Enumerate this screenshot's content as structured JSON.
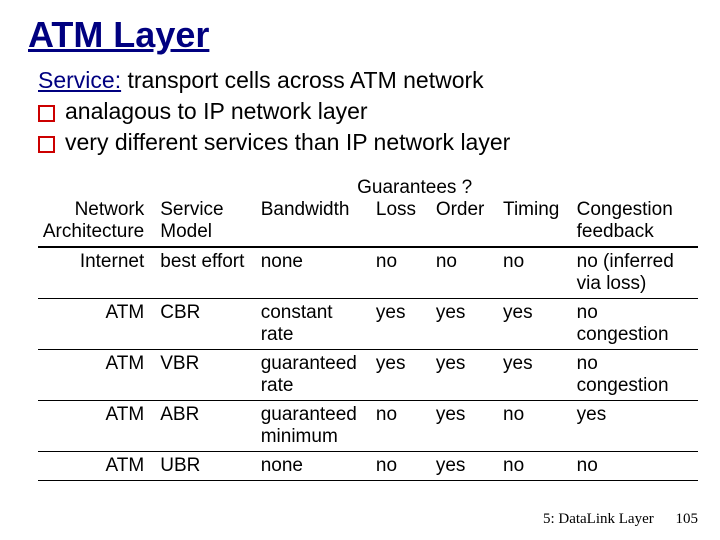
{
  "title": "ATM Layer",
  "service_label": "Service:",
  "service_text": " transport cells across ATM network",
  "bullets": [
    "analagous to IP network layer",
    "very different services than IP network layer"
  ],
  "table": {
    "guarantees_label": "Guarantees ?",
    "headers": {
      "arch": "Network\nArchitecture",
      "model": "Service\nModel",
      "bw": "Bandwidth",
      "loss": "Loss",
      "order": "Order",
      "timing": "Timing",
      "cong": "Congestion\nfeedback"
    },
    "rows": [
      {
        "arch": "Internet",
        "model": "best effort",
        "bw": "none",
        "loss": "no",
        "order": "no",
        "timing": "no",
        "cong": "no (inferred\nvia loss)"
      },
      {
        "arch": "ATM",
        "model": "CBR",
        "bw": "constant\nrate",
        "loss": "yes",
        "order": "yes",
        "timing": "yes",
        "cong": "no\ncongestion"
      },
      {
        "arch": "ATM",
        "model": "VBR",
        "bw": "guaranteed\nrate",
        "loss": "yes",
        "order": "yes",
        "timing": "yes",
        "cong": "no\ncongestion"
      },
      {
        "arch": "ATM",
        "model": "ABR",
        "bw": "guaranteed\nminimum",
        "loss": "no",
        "order": "yes",
        "timing": "no",
        "cong": "yes"
      },
      {
        "arch": "ATM",
        "model": "UBR",
        "bw": "none",
        "loss": "no",
        "order": "yes",
        "timing": "no",
        "cong": "no"
      }
    ]
  },
  "footer": {
    "chapter": "5: DataLink Layer",
    "page": "105"
  },
  "colors": {
    "title": "#000080",
    "bullet_border": "#cc0000",
    "text": "#000000",
    "background": "#ffffff",
    "rule": "#000000"
  }
}
